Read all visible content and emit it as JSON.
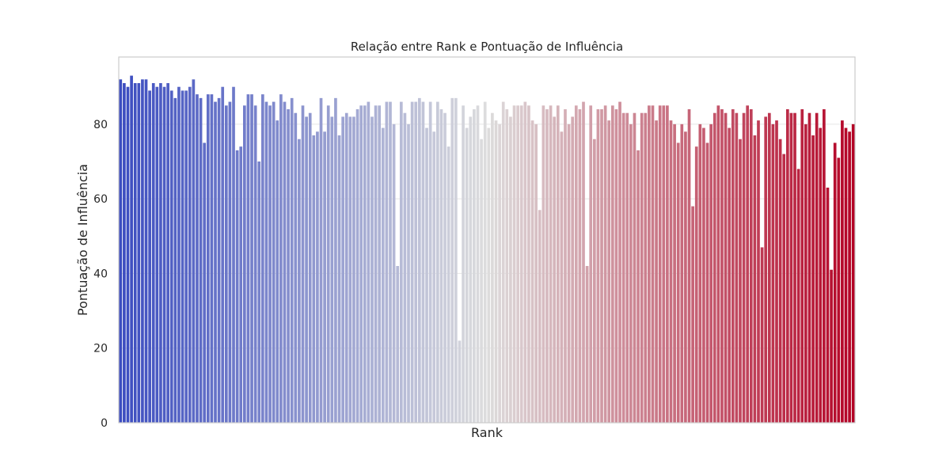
{
  "chart_data": {
    "type": "bar",
    "title": "Relação entre Rank e Pontuação de Influência",
    "xlabel": "Rank",
    "ylabel": "Pontuação de Influência",
    "ylim": [
      0,
      98
    ],
    "yticks": [
      0,
      20,
      40,
      60,
      80
    ],
    "grid": true,
    "colormap": "coolwarm",
    "color_start": "#3b4cc0",
    "color_mid": "#dddddd",
    "color_end": "#b40426",
    "values": [
      92,
      91,
      90,
      93,
      91,
      91,
      92,
      92,
      89,
      91,
      90,
      91,
      90,
      91,
      89,
      87,
      90,
      89,
      89,
      90,
      92,
      88,
      87,
      75,
      88,
      88,
      86,
      87,
      90,
      85,
      86,
      90,
      73,
      74,
      85,
      88,
      88,
      85,
      70,
      88,
      86,
      85,
      86,
      81,
      88,
      86,
      84,
      87,
      83,
      76,
      85,
      82,
      83,
      77,
      78,
      87,
      78,
      85,
      82,
      87,
      77,
      82,
      83,
      82,
      82,
      84,
      85,
      85,
      86,
      82,
      85,
      85,
      79,
      86,
      86,
      80,
      42,
      86,
      83,
      80,
      86,
      86,
      87,
      86,
      79,
      86,
      78,
      86,
      84,
      83,
      74,
      87,
      87,
      22,
      85,
      79,
      82,
      84,
      85,
      76,
      86,
      79,
      83,
      81,
      80,
      86,
      84,
      82,
      85,
      85,
      85,
      86,
      85,
      81,
      80,
      57,
      85,
      84,
      85,
      82,
      85,
      78,
      84,
      80,
      82,
      85,
      84,
      86,
      42,
      85,
      76,
      84,
      84,
      85,
      81,
      85,
      84,
      86,
      83,
      83,
      80,
      83,
      73,
      83,
      83,
      85,
      85,
      81,
      85,
      85,
      85,
      81,
      80,
      75,
      80,
      78,
      84,
      58,
      74,
      80,
      79,
      75,
      80,
      83,
      85,
      84,
      83,
      79,
      84,
      83,
      76,
      83,
      85,
      84,
      77,
      81,
      47,
      82,
      83,
      80,
      81,
      76,
      72,
      84,
      83,
      83,
      68,
      84,
      80,
      83,
      77,
      83,
      79,
      84,
      63,
      41,
      75,
      71,
      81,
      79,
      78,
      80
    ]
  }
}
